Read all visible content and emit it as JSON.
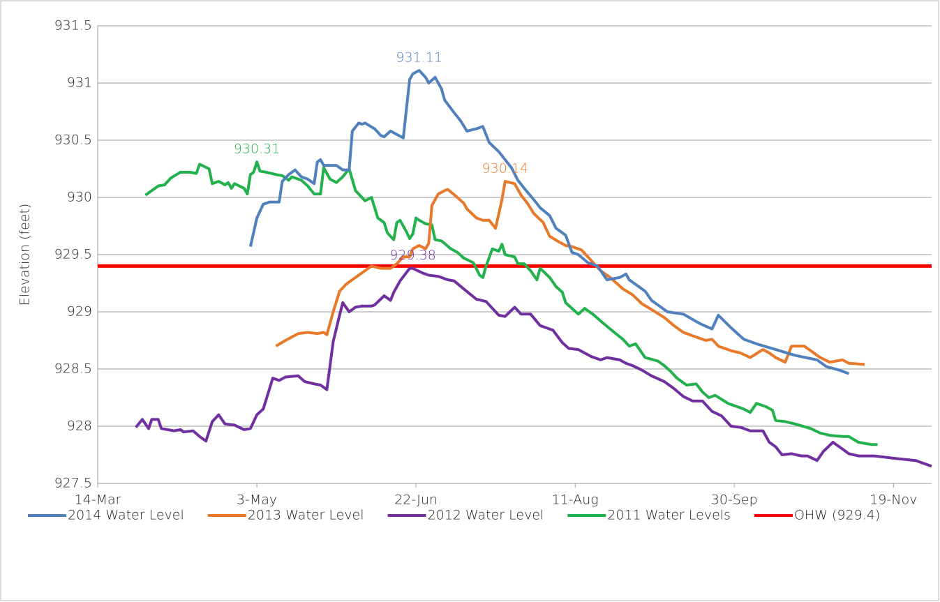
{
  "chart_data": {
    "type": "line",
    "y_label": "Elevation (feet)",
    "xlim": [
      73,
      335
    ],
    "xticks": [
      {
        "value": 73,
        "label": "14-Mar"
      },
      {
        "value": 123,
        "label": "3-May"
      },
      {
        "value": 173,
        "label": "22-Jun"
      },
      {
        "value": 223,
        "label": "11-Aug"
      },
      {
        "value": 273,
        "label": "30-Sep"
      },
      {
        "value": 323,
        "label": "19-Nov"
      }
    ],
    "ylim": [
      927.5,
      931.5
    ],
    "yticks": [
      927.5,
      928,
      928.5,
      929,
      929.5,
      930,
      930.5,
      931,
      931.5
    ],
    "grid": true,
    "legend": "bottom",
    "series": [
      {
        "name": "2014 Water Level",
        "color": "#5081bd",
        "x": [
          121,
          123,
          125,
          127,
          130,
          131,
          133,
          135,
          137,
          139,
          141,
          142,
          143,
          144,
          148,
          150,
          152,
          153,
          155,
          156,
          157,
          160,
          162,
          163,
          165,
          167,
          169,
          171,
          172,
          174,
          176,
          177,
          179,
          181,
          182,
          185,
          187,
          189,
          192,
          194,
          196,
          199,
          201,
          203,
          205,
          207,
          210,
          212,
          215,
          217,
          220,
          222,
          224,
          227,
          230,
          233,
          237,
          239,
          240,
          242,
          245,
          247,
          252,
          257,
          262,
          266,
          268,
          272,
          276,
          280,
          286,
          292,
          299,
          302,
          306,
          309
        ],
        "values": [
          929.57,
          929.82,
          929.94,
          929.96,
          929.96,
          930.14,
          930.2,
          930.24,
          930.18,
          930.16,
          930.12,
          930.31,
          930.33,
          930.28,
          930.28,
          930.24,
          930.24,
          930.58,
          930.65,
          930.64,
          930.65,
          930.6,
          930.54,
          930.53,
          930.58,
          930.55,
          930.52,
          931.03,
          931.08,
          931.11,
          931.05,
          931.0,
          931.05,
          930.95,
          930.85,
          930.74,
          930.67,
          930.58,
          930.6,
          930.62,
          930.48,
          930.4,
          930.33,
          930.26,
          930.15,
          930.08,
          929.98,
          929.91,
          929.84,
          929.73,
          929.67,
          929.52,
          929.5,
          929.43,
          929.4,
          929.28,
          929.3,
          929.33,
          929.28,
          929.24,
          929.18,
          929.1,
          929.0,
          928.98,
          928.9,
          928.85,
          928.97,
          928.86,
          928.76,
          928.72,
          928.67,
          928.62,
          928.58,
          928.52,
          928.49,
          928.46
        ]
      },
      {
        "name": "2013 Water Level",
        "color": "#e8792a",
        "x": [
          129,
          132,
          136,
          139,
          142,
          144,
          145,
          147,
          149,
          151,
          154,
          156,
          159,
          162,
          165,
          167,
          169,
          171,
          172,
          174,
          176,
          177,
          178,
          180,
          182,
          183,
          186,
          188,
          189,
          192,
          194,
          196,
          198,
          200,
          201,
          204,
          206,
          208,
          210,
          213,
          215,
          218,
          220,
          222,
          225,
          228,
          231,
          234,
          238,
          241,
          244,
          247,
          251,
          254,
          257,
          261,
          264,
          266,
          268,
          272,
          275,
          278,
          282,
          284,
          286,
          289,
          291,
          295,
          297,
          300,
          303,
          307,
          309,
          314
        ],
        "values": [
          928.7,
          928.75,
          928.81,
          928.82,
          928.81,
          928.82,
          928.8,
          929.0,
          929.18,
          929.24,
          929.3,
          929.34,
          929.4,
          929.38,
          929.38,
          929.42,
          929.48,
          929.48,
          929.55,
          929.58,
          929.55,
          929.6,
          929.93,
          930.03,
          930.06,
          930.07,
          930.0,
          929.95,
          929.9,
          929.82,
          929.8,
          929.8,
          929.73,
          929.98,
          930.14,
          930.12,
          930.02,
          929.95,
          929.86,
          929.78,
          929.66,
          929.61,
          929.58,
          929.57,
          929.54,
          929.45,
          929.36,
          929.3,
          929.2,
          929.15,
          929.07,
          929.02,
          928.95,
          928.88,
          928.82,
          928.78,
          928.75,
          928.76,
          928.7,
          928.66,
          928.64,
          928.6,
          928.67,
          928.64,
          928.6,
          928.56,
          928.7,
          928.7,
          928.66,
          928.6,
          928.56,
          928.58,
          928.55,
          928.54
        ]
      },
      {
        "name": "2012 Water Level",
        "color": "#7030a0",
        "x": [
          85,
          87,
          89,
          90,
          92,
          93,
          97,
          99,
          100,
          103,
          105,
          107,
          109,
          111,
          113,
          116,
          119,
          121,
          123,
          125,
          128,
          130,
          132,
          136,
          138,
          141,
          143,
          145,
          147,
          149,
          150,
          152,
          154,
          156,
          159,
          160,
          163,
          165,
          166,
          168,
          171,
          172,
          175,
          177,
          180,
          183,
          185,
          188,
          192,
          195,
          199,
          201,
          204,
          206,
          209,
          212,
          216,
          219,
          221,
          224,
          228,
          231,
          233,
          237,
          239,
          241,
          244,
          247,
          251,
          254,
          257,
          260,
          263,
          266,
          269,
          272,
          275,
          278,
          282,
          284,
          286,
          288,
          291,
          294,
          296,
          299,
          301,
          304,
          307,
          309,
          312,
          317,
          323,
          330,
          335
        ],
        "values": [
          927.99,
          928.06,
          927.98,
          928.06,
          928.06,
          927.98,
          927.96,
          927.97,
          927.95,
          927.96,
          927.91,
          927.87,
          928.04,
          928.1,
          928.02,
          928.01,
          927.97,
          927.98,
          928.1,
          928.15,
          928.42,
          928.4,
          928.43,
          928.44,
          928.39,
          928.37,
          928.36,
          928.32,
          928.74,
          928.97,
          929.08,
          929.0,
          929.04,
          929.05,
          929.05,
          929.06,
          929.14,
          929.1,
          929.17,
          929.27,
          929.38,
          929.38,
          929.34,
          929.32,
          929.31,
          929.28,
          929.27,
          929.2,
          929.11,
          929.09,
          928.97,
          928.96,
          929.04,
          928.98,
          928.98,
          928.88,
          928.84,
          928.73,
          928.68,
          928.67,
          928.61,
          928.58,
          928.6,
          928.58,
          928.55,
          928.53,
          928.49,
          928.44,
          928.39,
          928.33,
          928.26,
          928.22,
          928.22,
          928.13,
          928.09,
          928.0,
          927.99,
          927.96,
          927.96,
          927.86,
          927.82,
          927.75,
          927.76,
          927.74,
          927.74,
          927.7,
          927.78,
          927.86,
          927.8,
          927.76,
          927.74,
          927.74,
          927.72,
          927.7,
          927.65
        ]
      },
      {
        "name": "2011 Water Levels",
        "color": "#22b14c",
        "x": [
          88,
          90,
          92,
          94,
          96,
          99,
          102,
          104,
          105,
          108,
          109,
          111,
          113,
          114,
          115,
          116,
          119,
          120,
          121,
          122,
          123,
          124,
          126,
          129,
          131,
          133,
          134,
          137,
          139,
          141,
          143,
          144,
          146,
          148,
          150,
          152,
          154,
          155,
          157,
          159,
          161,
          163,
          164,
          166,
          167,
          168,
          170,
          171,
          172,
          173,
          174,
          176,
          178,
          179,
          181,
          184,
          186,
          188,
          191,
          193,
          194,
          195,
          197,
          199,
          200,
          201,
          204,
          205,
          207,
          209,
          211,
          212,
          215,
          217,
          219,
          220,
          222,
          224,
          226,
          229,
          231,
          234,
          238,
          240,
          242,
          245,
          249,
          251,
          253,
          255,
          258,
          261,
          263,
          265,
          267,
          271,
          274,
          276,
          278,
          280,
          283,
          285,
          286,
          289,
          292,
          297,
          300,
          303,
          307,
          309,
          312,
          316,
          318
        ],
        "values": [
          930.02,
          930.06,
          930.1,
          930.11,
          930.17,
          930.22,
          930.22,
          930.21,
          930.29,
          930.25,
          930.12,
          930.14,
          930.11,
          930.13,
          930.08,
          930.12,
          930.08,
          930.03,
          930.2,
          930.22,
          930.31,
          930.23,
          930.22,
          930.2,
          930.19,
          930.15,
          930.18,
          930.15,
          930.1,
          930.03,
          930.03,
          930.26,
          930.16,
          930.13,
          930.18,
          930.25,
          930.06,
          930.03,
          929.97,
          930.0,
          929.82,
          929.78,
          929.69,
          929.63,
          929.78,
          929.8,
          929.7,
          929.64,
          929.68,
          929.82,
          929.8,
          929.77,
          929.76,
          929.63,
          929.62,
          929.55,
          929.52,
          929.47,
          929.43,
          929.32,
          929.3,
          929.4,
          929.55,
          929.53,
          929.59,
          929.5,
          929.48,
          929.42,
          929.42,
          929.36,
          929.28,
          929.38,
          929.3,
          929.22,
          929.17,
          929.08,
          929.03,
          928.98,
          929.03,
          928.97,
          928.92,
          928.85,
          928.76,
          928.7,
          928.72,
          928.6,
          928.57,
          928.53,
          928.48,
          928.42,
          928.36,
          928.37,
          928.3,
          928.25,
          928.27,
          928.2,
          928.17,
          928.15,
          928.12,
          928.2,
          928.17,
          928.14,
          928.05,
          928.04,
          928.02,
          927.98,
          927.94,
          927.92,
          927.91,
          927.91,
          927.86,
          927.84,
          927.84
        ]
      },
      {
        "name": "OHW (929.4)",
        "color": "#ff0000",
        "x": [
          73,
          335
        ],
        "values": [
          929.4,
          929.4
        ]
      }
    ],
    "annotations": [
      {
        "x": 174,
        "y": 931.11,
        "color": "#5081bd"
      },
      {
        "x": 123,
        "y": 930.31,
        "color": "#22b14c"
      },
      {
        "x": 201,
        "y": 930.14,
        "color": "#e8792a"
      },
      {
        "x": 172,
        "y": 929.38,
        "color": "#7030a0"
      }
    ]
  }
}
